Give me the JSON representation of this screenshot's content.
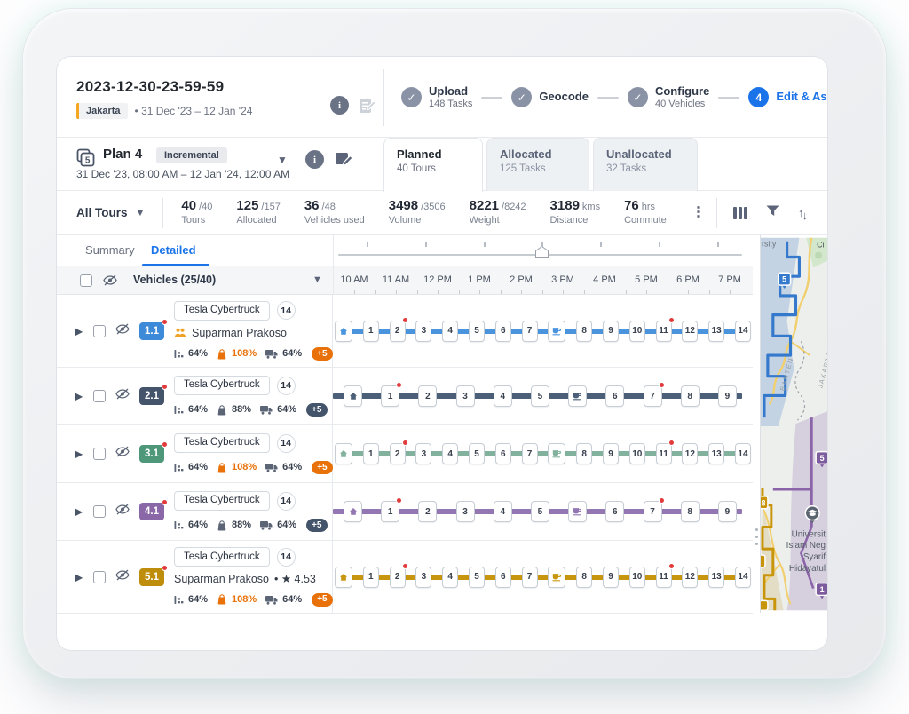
{
  "colors": {
    "accent": "#1a73e8",
    "alert_orange": "#e8710a",
    "red_dot": "#e23b3b",
    "step_done": "#8a93a6"
  },
  "header": {
    "title": "2023-12-30-23-59-59",
    "location_badge": "Jakarta",
    "date_range": "• 31 Dec '23 – 12 Jan '24",
    "steps": [
      {
        "label": "Upload",
        "sub": "148 Tasks",
        "state": "done"
      },
      {
        "label": "Geocode",
        "sub": "",
        "state": "done"
      },
      {
        "label": "Configure",
        "sub": "40 Vehicles",
        "state": "done"
      },
      {
        "label": "Edit & Assign",
        "sub": "",
        "state": "active",
        "number": "4"
      }
    ]
  },
  "plan": {
    "icon_number": "5",
    "name": "Plan 4",
    "type_badge": "Incremental",
    "schedule": "31 Dec '23, 08:00 AM – 12 Jan '24, 12:00 AM",
    "tabs": [
      {
        "label": "Planned",
        "sub": "40 Tours",
        "active": true
      },
      {
        "label": "Allocated",
        "sub": "125 Tasks",
        "active": false
      },
      {
        "label": "Unallocated",
        "sub": "32 Tasks",
        "active": false
      }
    ]
  },
  "toolbar": {
    "tour_filter": "All Tours",
    "stats": [
      {
        "value": "40",
        "suffix": "/40",
        "label": "Tours"
      },
      {
        "value": "125",
        "suffix": "/157",
        "label": "Allocated"
      },
      {
        "value": "36",
        "suffix": "/48",
        "label": "Vehicles used"
      },
      {
        "value": "3498",
        "suffix": "/3506",
        "label": "Volume"
      },
      {
        "value": "8221",
        "suffix": "/8242",
        "label": "Weight"
      },
      {
        "value": "3189",
        "suffix": "kms",
        "label": "Distance"
      },
      {
        "value": "76",
        "suffix": "hrs",
        "label": "Commute"
      }
    ]
  },
  "panel": {
    "tabs": [
      {
        "label": "Summary",
        "active": false
      },
      {
        "label": "Detailed",
        "active": true
      }
    ],
    "vehicles_header": "Vehicles (25/40)"
  },
  "timeline": {
    "hours": [
      "10 AM",
      "11 AM",
      "12 PM",
      "1 PM",
      "2 PM",
      "3 PM",
      "4 PM",
      "5 PM",
      "6 PM",
      "7 PM"
    ]
  },
  "vehicles": [
    {
      "id": "1.1",
      "badge_color": "#3d8ad8",
      "track_color": "#4a94de",
      "vehicle": "Tesla Cybertruck",
      "stop_count": "14",
      "driver": "Suparman Prakoso",
      "team_icon": true,
      "rating": "",
      "metrics": {
        "m1": "64%",
        "m2": "108%",
        "m2_alert": true,
        "m3": "64%"
      },
      "overflow": "+5",
      "overflow_alert": true,
      "route": {
        "before": 7,
        "after": 7,
        "reds": [
          2,
          11
        ],
        "lead": false
      }
    },
    {
      "id": "2.1",
      "badge_color": "#44546b",
      "track_color": "#4c5f79",
      "vehicle": "Tesla Cybertruck",
      "stop_count": "14",
      "driver": "",
      "team_icon": false,
      "rating": "",
      "metrics": {
        "m1": "64%",
        "m2": "88%",
        "m2_alert": false,
        "m3": "64%"
      },
      "overflow": "+5",
      "overflow_alert": false,
      "route": {
        "before": 5,
        "after": 4,
        "reds": [
          1,
          7
        ],
        "lead": true
      }
    },
    {
      "id": "3.1",
      "badge_color": "#4f9779",
      "track_color": "#82b29d",
      "vehicle": "Tesla Cybertruck",
      "stop_count": "14",
      "driver": "",
      "team_icon": false,
      "rating": "",
      "metrics": {
        "m1": "64%",
        "m2": "108%",
        "m2_alert": true,
        "m3": "64%"
      },
      "overflow": "+5",
      "overflow_alert": true,
      "route": {
        "before": 7,
        "after": 7,
        "reds": [
          2,
          11
        ],
        "lead": false
      }
    },
    {
      "id": "4.1",
      "badge_color": "#8a68a8",
      "track_color": "#9377b3",
      "vehicle": "Tesla Cybertruck",
      "stop_count": "14",
      "driver": "",
      "team_icon": false,
      "rating": "",
      "metrics": {
        "m1": "64%",
        "m2": "88%",
        "m2_alert": false,
        "m3": "64%"
      },
      "overflow": "+5",
      "overflow_alert": false,
      "route": {
        "before": 5,
        "after": 4,
        "reds": [
          1,
          7
        ],
        "lead": true
      }
    },
    {
      "id": "5.1",
      "badge_color": "#bd8d0b",
      "track_color": "#c8950f",
      "vehicle": "Tesla Cybertruck",
      "stop_count": "14",
      "driver": "Suparman Prakoso",
      "team_icon": false,
      "rating": "• ★ 4.53",
      "metrics": {
        "m1": "64%",
        "m2": "108%",
        "m2_alert": true,
        "m3": "64%"
      },
      "overflow": "+5",
      "overflow_alert": true,
      "route": {
        "before": 7,
        "after": 7,
        "reds": [
          2,
          11
        ],
        "lead": false
      }
    }
  ],
  "map": {
    "top_left_label": "rsity",
    "top_right_label": "Ci",
    "region1": "BANTEN",
    "region2": "JAKARTA",
    "marker_blue": "5",
    "marker_purple": "5",
    "marker_purple2": "1",
    "marker_gold": "8",
    "poi_line1": "Universit",
    "poi_line2": "Islam Neg",
    "poi_line3": "Syarif",
    "poi_line4": "Hidayatul"
  }
}
